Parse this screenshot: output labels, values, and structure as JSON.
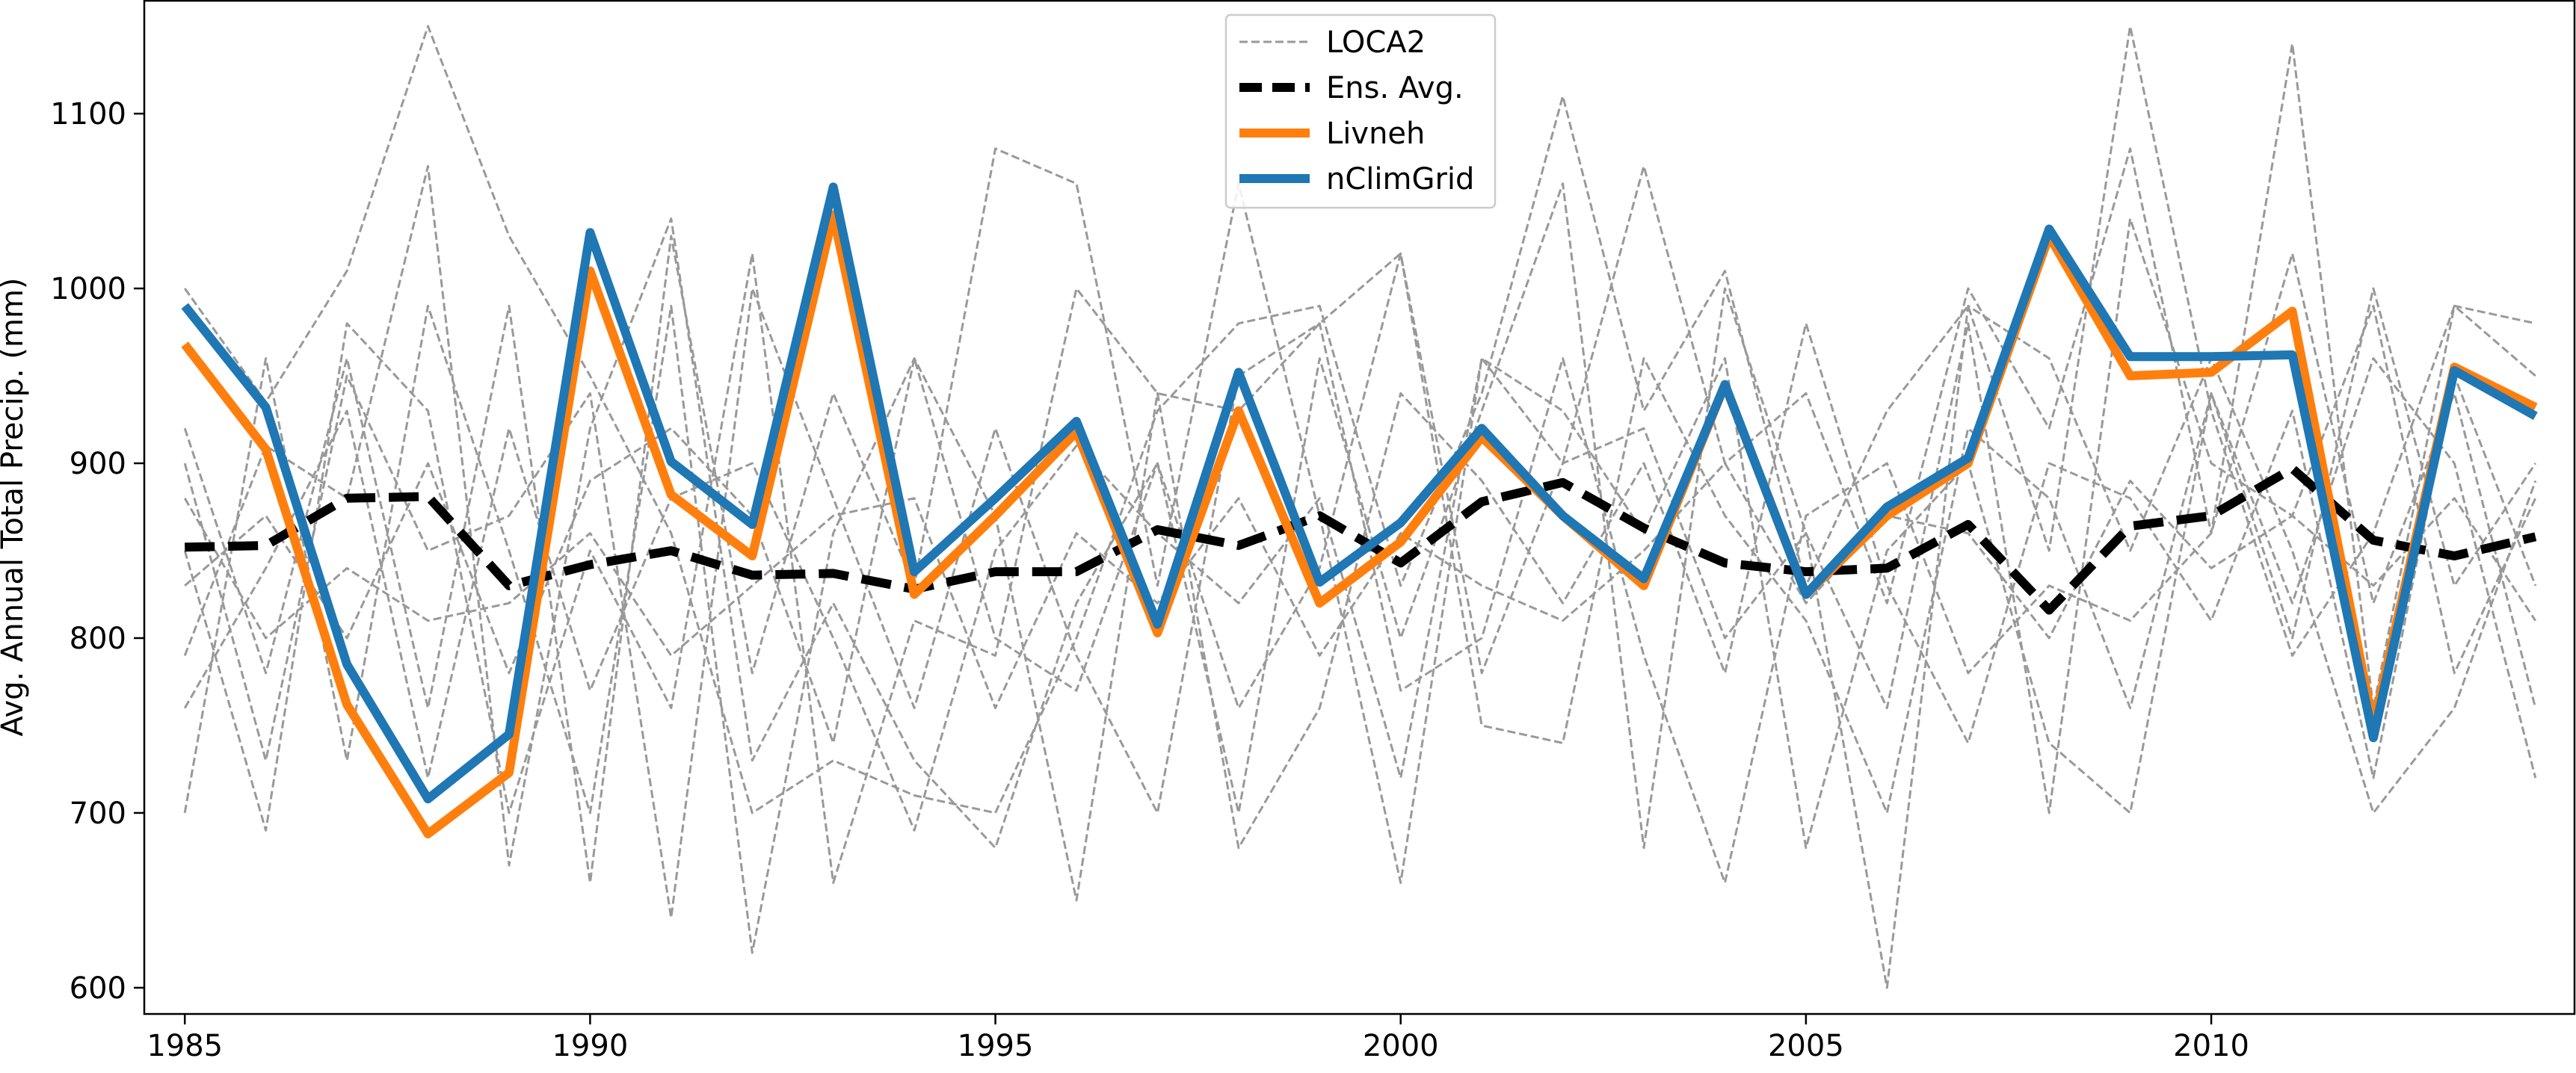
{
  "chart_data": {
    "type": "line",
    "title": "",
    "xlabel": "",
    "ylabel": "Avg. Annual Total Precip. (mm)",
    "xlim": [
      1984.5,
      2014.5
    ],
    "ylim": [
      585,
      1165
    ],
    "x_ticks": [
      1985,
      1990,
      1995,
      2000,
      2005,
      2010
    ],
    "x_tick_labels": [
      "1985",
      "1990",
      "1995",
      "2000",
      "2005",
      "2010"
    ],
    "y_ticks": [
      600,
      700,
      800,
      900,
      1000,
      1100
    ],
    "y_tick_labels": [
      "600",
      "700",
      "800",
      "900",
      "1000",
      "1100"
    ],
    "grid": false,
    "legend_position": "top-center",
    "x": [
      1985,
      1986,
      1987,
      1988,
      1989,
      1990,
      1991,
      1992,
      1993,
      1994,
      1995,
      1996,
      1997,
      1998,
      1999,
      2000,
      2001,
      2002,
      2003,
      2004,
      2005,
      2006,
      2007,
      2008,
      2009,
      2010,
      2011,
      2012,
      2013,
      2014
    ],
    "loca2_members": [
      [
        1000,
        935,
        1010,
        1150,
        1030,
        950,
        860,
        700,
        730,
        710,
        700,
        800,
        930,
        980,
        990,
        830,
        940,
        1110,
        930,
        1010,
        830,
        930,
        990,
        850,
        1150,
        930,
        790,
        860,
        990,
        950
      ],
      [
        920,
        780,
        960,
        760,
        990,
        660,
        1030,
        780,
        940,
        830,
        1080,
        1060,
        830,
        1060,
        870,
        660,
        960,
        900,
        1070,
        900,
        940,
        820,
        1000,
        920,
        1080,
        860,
        1140,
        760,
        990,
        980
      ],
      [
        850,
        690,
        980,
        930,
        700,
        850,
        760,
        1020,
        660,
        810,
        790,
        1000,
        940,
        930,
        980,
        1020,
        750,
        740,
        960,
        870,
        810,
        700,
        920,
        880,
        760,
        940,
        820,
        960,
        900,
        720
      ],
      [
        790,
        910,
        880,
        1070,
        670,
        920,
        1040,
        730,
        820,
        730,
        680,
        820,
        900,
        700,
        960,
        800,
        930,
        1060,
        680,
        1000,
        860,
        760,
        980,
        700,
        1040,
        900,
        870,
        990,
        780,
        880
      ],
      [
        700,
        960,
        730,
        990,
        850,
        700,
        990,
        620,
        860,
        960,
        870,
        650,
        940,
        680,
        760,
        940,
        890,
        820,
        900,
        780,
        980,
        830,
        740,
        900,
        880,
        810,
        930,
        720,
        950,
        830
      ],
      [
        900,
        730,
        950,
        850,
        870,
        940,
        640,
        1000,
        880,
        760,
        920,
        790,
        700,
        950,
        980,
        770,
        800,
        960,
        790,
        660,
        870,
        900,
        780,
        830,
        810,
        860,
        1020,
        820,
        940,
        760
      ],
      [
        830,
        870,
        800,
        900,
        780,
        890,
        920,
        870,
        740,
        960,
        800,
        770,
        900,
        760,
        840,
        1020,
        780,
        900,
        920,
        800,
        860,
        600,
        990,
        960,
        850,
        960,
        850,
        700,
        760,
        890
      ],
      [
        760,
        840,
        930,
        720,
        920,
        770,
        880,
        900,
        800,
        690,
        850,
        910,
        860,
        820,
        880,
        720,
        960,
        930,
        860,
        960,
        680,
        850,
        900,
        740,
        700,
        940,
        800,
        1000,
        830,
        900
      ],
      [
        880,
        800,
        840,
        810,
        820,
        860,
        790,
        830,
        870,
        880,
        760,
        860,
        820,
        880,
        790,
        860,
        830,
        810,
        850,
        900,
        820,
        870,
        860,
        800,
        890,
        840,
        870,
        830,
        880,
        810
      ]
    ],
    "series": [
      {
        "name": "Ens. Avg.",
        "values": [
          852,
          853,
          880,
          881,
          830,
          842,
          850,
          836,
          837,
          828,
          838,
          838,
          862,
          853,
          870,
          843,
          878,
          889,
          863,
          843,
          838,
          840,
          865,
          816,
          864,
          870,
          897,
          856,
          847,
          858
        ],
        "color": "#000000",
        "dash": "dashed"
      },
      {
        "name": "Livneh",
        "values": [
          968,
          908,
          762,
          688,
          723,
          1010,
          882,
          847,
          1042,
          825,
          870,
          918,
          803,
          930,
          820,
          855,
          915,
          870,
          830,
          945,
          825,
          870,
          900,
          1030,
          950,
          952,
          987,
          750,
          955,
          932
        ],
        "color": "#ff7f0e"
      },
      {
        "name": "nClimGrid",
        "values": [
          990,
          932,
          785,
          708,
          745,
          1032,
          901,
          865,
          1058,
          838,
          880,
          924,
          808,
          952,
          832,
          866,
          920,
          870,
          834,
          945,
          825,
          875,
          903,
          1034,
          961,
          961,
          962,
          743,
          953,
          927
        ],
        "color": "#1f77b4"
      }
    ],
    "legend": [
      {
        "label": "LOCA2",
        "color": "#999999",
        "style": "dashed-thin"
      },
      {
        "label": "Ens. Avg.",
        "color": "#000000",
        "style": "dashed-thick"
      },
      {
        "label": "Livneh",
        "color": "#ff7f0e",
        "style": "solid-thick"
      },
      {
        "label": "nClimGrid",
        "color": "#1f77b4",
        "style": "solid-thick"
      }
    ],
    "loca2_color": "#999999"
  }
}
